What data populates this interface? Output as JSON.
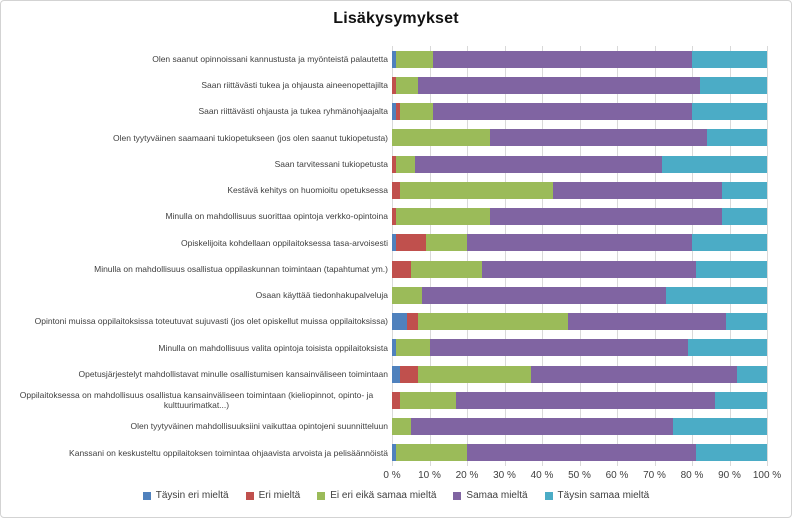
{
  "chart_data": {
    "type": "bar",
    "stacked": true,
    "orientation": "horizontal",
    "unit": "%",
    "title": "Lisäkysymykset",
    "legend_position": "bottom",
    "grid": true,
    "categories": [
      "Olen saanut opinnoissani kannustusta ja myönteistä palautetta",
      "Saan riittävästi tukea ja ohjausta aineenopettajilta",
      "Saan riittävästi ohjausta ja tukea ryhmänohjaajalta",
      "Olen tyytyväinen saamaani tukiopetukseen (jos olen saanut tukiopetusta)",
      "Saan tarvitessani tukiopetusta",
      "Kestävä kehitys on huomioitu opetuksessa",
      "Minulla on mahdollisuus suorittaa opintoja verkko-opintoina",
      "Opiskelijoita kohdellaan oppilaitoksessa tasa-arvoisesti",
      "Minulla on mahdollisuus osallistua oppilaskunnan toimintaan (tapahtumat ym.)",
      "Osaan käyttää tiedonhakupalveluja",
      "Opintoni muissa oppilaitoksissa toteutuvat sujuvasti (jos olet opiskellut muissa oppilaitoksissa)",
      "Minulla on mahdollisuus valita opintoja toisista oppilaitoksista",
      "Opetusjärjestelyt mahdollistavat minulle osallistumisen kansainväliseen toimintaan",
      "Oppilaitoksessa on mahdollisuus osallistua kansainväliseen toimintaan (kieliopinnot, opinto- ja kulttuurimatkat...)",
      "Olen tyytyväinen mahdollisuuksiini vaikuttaa opintojeni suunnitteluun",
      "Kanssani on keskusteltu oppilaitoksen toimintaa ohjaavista arvoista ja pelisäännöistä"
    ],
    "series": [
      {
        "name": "Täysin eri mieltä",
        "color": "#4F81BD",
        "values": [
          1,
          0,
          1,
          0,
          0,
          0,
          0,
          1,
          0,
          0,
          4,
          1,
          2,
          0,
          0,
          1
        ]
      },
      {
        "name": "Eri mieltä",
        "color": "#C0504D",
        "values": [
          0,
          1,
          1,
          0,
          1,
          2,
          1,
          8,
          5,
          0,
          3,
          0,
          5,
          2,
          0,
          0
        ]
      },
      {
        "name": "Ei eri eikä samaa mieltä",
        "color": "#9BBB59",
        "values": [
          10,
          6,
          9,
          26,
          5,
          41,
          25,
          11,
          19,
          8,
          40,
          9,
          30,
          15,
          5,
          19
        ]
      },
      {
        "name": "Samaa mieltä",
        "color": "#8064A2",
        "values": [
          69,
          75,
          69,
          58,
          66,
          45,
          62,
          60,
          57,
          65,
          42,
          69,
          55,
          69,
          70,
          61
        ]
      },
      {
        "name": "Täysin samaa mieltä",
        "color": "#4BACC6",
        "values": [
          20,
          18,
          20,
          16,
          28,
          12,
          12,
          20,
          19,
          27,
          11,
          21,
          8,
          14,
          25,
          19
        ]
      }
    ],
    "x_axis": {
      "min": 0,
      "max": 100,
      "tick_labels": [
        "0 %",
        "10 %",
        "20 %",
        "30 %",
        "40 %",
        "50 %",
        "60 %",
        "70 %",
        "80 %",
        "90 %",
        "100 %"
      ]
    },
    "colors": {
      "gridline": "#d9d9d9",
      "text": "#3f3f3f",
      "title": "#111111",
      "frame_border": "#d3d3d3"
    }
  }
}
